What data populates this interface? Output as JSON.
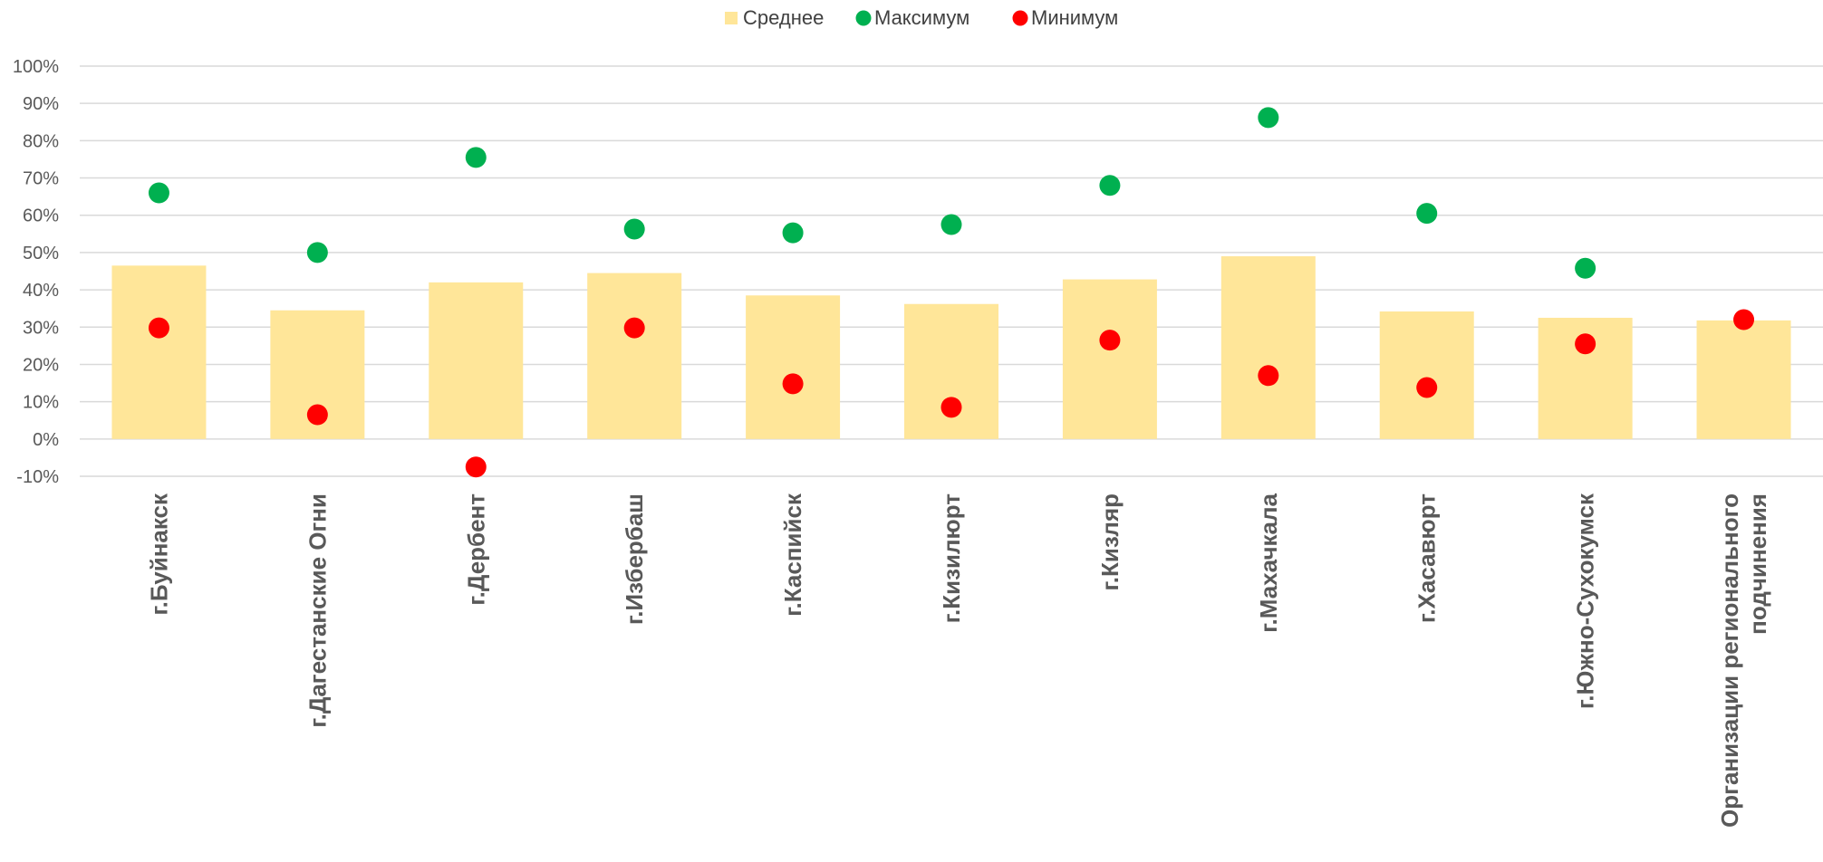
{
  "chart_data": {
    "type": "bar",
    "categories": [
      [
        "г.Буйнакск"
      ],
      [
        "г.Дагестанские Огни"
      ],
      [
        "г.Дербент"
      ],
      [
        "г.Избербаш"
      ],
      [
        "г.Каспийск"
      ],
      [
        "г.Кизилюрт"
      ],
      [
        "г.Кизляр"
      ],
      [
        "г.Махачкала"
      ],
      [
        "г.Хасавюрт"
      ],
      [
        "г.Южно-Сухокумск"
      ],
      [
        "Организации регионального",
        "подчинения"
      ]
    ],
    "series": [
      {
        "name": "Среднее",
        "kind": "bar",
        "color": "#FFE699",
        "values": [
          0.465,
          0.345,
          0.42,
          0.445,
          0.385,
          0.362,
          0.428,
          0.49,
          0.342,
          0.325,
          0.318
        ]
      },
      {
        "name": "Максимум",
        "kind": "marker",
        "color": "#00B050",
        "values": [
          0.66,
          0.5,
          0.755,
          0.563,
          0.553,
          0.575,
          0.68,
          0.862,
          0.605,
          0.458,
          null
        ]
      },
      {
        "name": "Минимум",
        "kind": "marker",
        "color": "#FF0000",
        "values": [
          0.298,
          0.065,
          -0.075,
          0.298,
          0.148,
          0.085,
          0.265,
          0.17,
          0.138,
          0.255,
          0.32
        ]
      }
    ],
    "yticks": [
      "-10%",
      "0%",
      "10%",
      "20%",
      "30%",
      "40%",
      "50%",
      "60%",
      "70%",
      "80%",
      "90%",
      "100%"
    ],
    "ylim": [
      -0.1,
      1.0
    ],
    "grid": true,
    "legend_position": "top-center",
    "colors": {
      "grid": "#D9D9D9",
      "axis_text": "#595959"
    }
  }
}
